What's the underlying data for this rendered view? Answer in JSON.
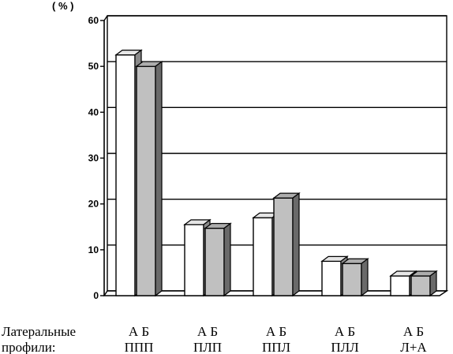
{
  "chart_data": {
    "type": "bar",
    "unit_label": "( % )",
    "ylim": [
      0,
      60
    ],
    "y_ticks": [
      "0",
      "10",
      "20",
      "30",
      "40",
      "50",
      "60"
    ],
    "grid": true,
    "row_label_line1": "Латеральные",
    "row_label_line2": "профили:",
    "categories": [
      {
        "ab": "А Б",
        "name": "ППП"
      },
      {
        "ab": "А Б",
        "name": "ПЛП"
      },
      {
        "ab": "А Б",
        "name": "ППЛ"
      },
      {
        "ab": "А Б",
        "name": "ПЛЛ"
      },
      {
        "ab": "А Б",
        "name": "Л+А"
      }
    ],
    "series": [
      {
        "name": "А",
        "values": [
          52.5,
          15.5,
          17,
          7.5,
          4.3
        ],
        "color": "#ffffff"
      },
      {
        "name": "Б",
        "values": [
          50,
          14.7,
          21.3,
          7,
          4.3
        ],
        "color": "#c0c0c0"
      }
    ]
  }
}
